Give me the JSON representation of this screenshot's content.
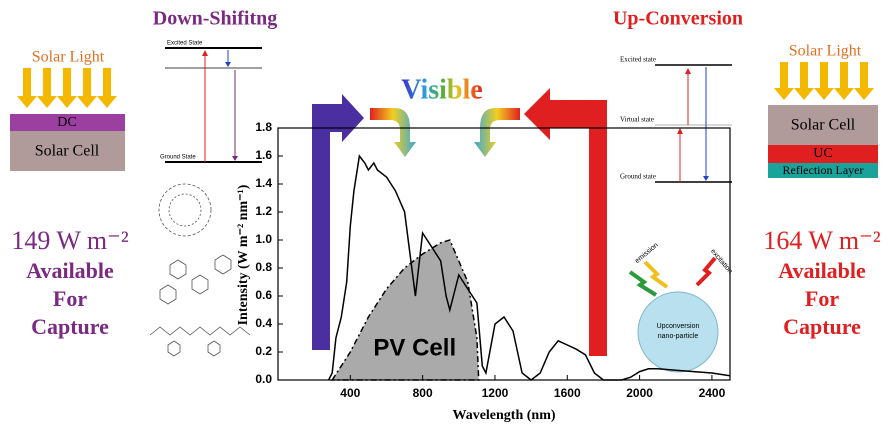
{
  "chart_data": {
    "type": "line",
    "x_label": "Wavelength (nm)",
    "y_label": "Intensity (W m⁻² nm⁻¹)",
    "xlim": [
      0,
      2500
    ],
    "ylim": [
      0,
      1.8
    ],
    "xticks": [
      400,
      800,
      1200,
      1600,
      2000,
      2400
    ],
    "yticks": [
      {
        "value": 0,
        "label": "0.0"
      },
      {
        "value": 0.2,
        "label": "0.2"
      },
      {
        "value": 0.4,
        "label": "0.4"
      },
      {
        "value": 0.6,
        "label": "0.6"
      },
      {
        "value": 0.8,
        "label": "0.8"
      },
      {
        "value": 1,
        "label": "1.0"
      },
      {
        "value": 1.2,
        "label": "1.2"
      },
      {
        "value": 1.4,
        "label": "1.4"
      },
      {
        "value": 1.6,
        "label": "1.6"
      },
      {
        "value": 1.8,
        "label": "1.8"
      }
    ],
    "series": [
      {
        "color": "#000000",
        "x": [
          280,
          300,
          320,
          350,
          380,
          400,
          420,
          450,
          480,
          500,
          530,
          550,
          600,
          650,
          700,
          720,
          760,
          800,
          850,
          900,
          930,
          950,
          1000,
          1050,
          1100,
          1130,
          1150,
          1200,
          1250,
          1300,
          1350,
          1400,
          1450,
          1500,
          1550,
          1600,
          1650,
          1700,
          1750,
          1800,
          1850,
          1900,
          1950,
          2000,
          2050,
          2100,
          2200,
          2300,
          2400,
          2500
        ],
        "values": [
          0,
          0.05,
          0.3,
          0.45,
          0.7,
          1.1,
          1.35,
          1.6,
          1.55,
          1.5,
          1.55,
          1.5,
          1.45,
          1.35,
          1.2,
          1.0,
          0.6,
          1.05,
          0.95,
          0.85,
          0.6,
          0.5,
          0.75,
          0.65,
          0.55,
          0.1,
          0.05,
          0.4,
          0.45,
          0.35,
          0.05,
          0,
          0.05,
          0.2,
          0.28,
          0.25,
          0.22,
          0.18,
          0.05,
          0,
          0,
          0,
          0.02,
          0.06,
          0.08,
          0.08,
          0.07,
          0.06,
          0.05,
          0.03
        ]
      }
    ],
    "area": {
      "label": "PV Cell",
      "color": "#aaaaaa",
      "x": [
        300,
        400,
        500,
        600,
        700,
        800,
        900,
        950,
        1000,
        1050,
        1100,
        1110
      ],
      "values": [
        0,
        0.2,
        0.45,
        0.65,
        0.8,
        0.9,
        0.98,
        1.0,
        0.85,
        0.7,
        0.3,
        0
      ]
    }
  },
  "visible": "Visible",
  "down_shifting": {
    "title": "Down-Shifitng",
    "solar_light": "Solar Light",
    "layer": "DC",
    "cell": "Solar Cell",
    "excited": "Excited State",
    "ground": "Ground State",
    "power": "149 W m⁻²",
    "caption": [
      "Available",
      "For",
      "Capture"
    ]
  },
  "up_conversion": {
    "title": "Up-Conversion",
    "solar_light": "Solar Light",
    "cell": "Solar Cell",
    "layer": "UC",
    "reflection": "Reflection Layer",
    "excited": "Excited state",
    "virtual": "Virtual state",
    "ground": "Ground state",
    "particle": [
      "Upconversion",
      "nano-particle"
    ],
    "emission": "emission",
    "excitation": "excitation",
    "power": "164 W m⁻²",
    "caption": [
      "Available",
      "For",
      "Capture"
    ]
  }
}
